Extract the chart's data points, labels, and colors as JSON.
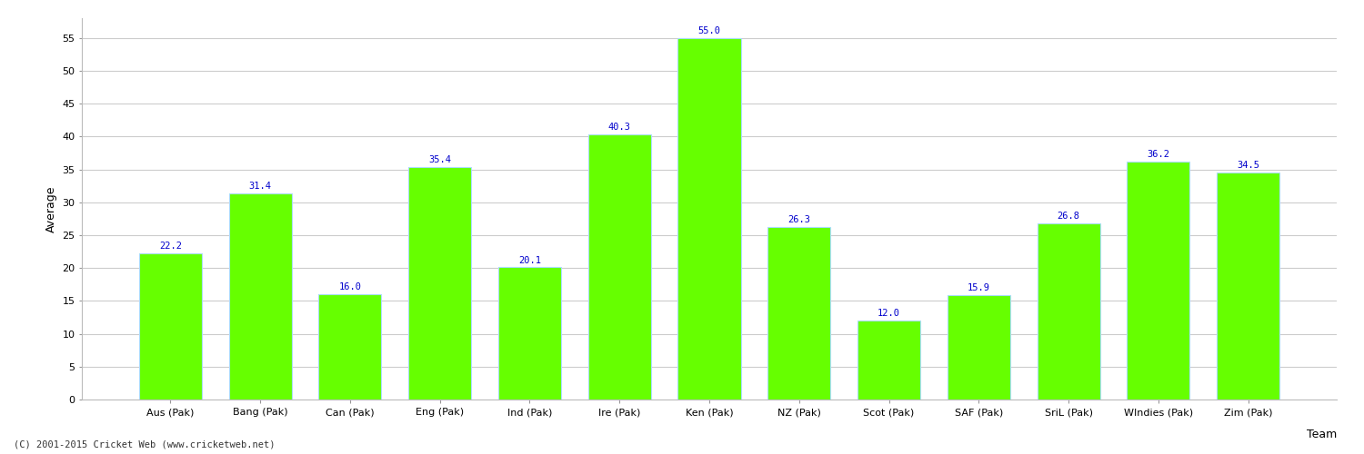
{
  "categories": [
    "Aus (Pak)",
    "Bang (Pak)",
    "Can (Pak)",
    "Eng (Pak)",
    "Ind (Pak)",
    "Ire (Pak)",
    "Ken (Pak)",
    "NZ (Pak)",
    "Scot (Pak)",
    "SAF (Pak)",
    "SriL (Pak)",
    "WIndies (Pak)",
    "Zim (Pak)"
  ],
  "values": [
    22.2,
    31.4,
    16.0,
    35.4,
    20.1,
    40.3,
    55.0,
    26.3,
    12.0,
    15.9,
    26.8,
    36.2,
    34.5
  ],
  "bar_color": "#66ff00",
  "bar_edge_color": "#aaddff",
  "value_label_color": "#0000cc",
  "xlabel": "Team",
  "ylabel": "Average",
  "ylim": [
    0,
    58
  ],
  "yticks": [
    0,
    5,
    10,
    15,
    20,
    25,
    30,
    35,
    40,
    45,
    50,
    55
  ],
  "grid_color": "#cccccc",
  "background_color": "#ffffff",
  "plot_background_color": "#ffffff",
  "footer_text": "(C) 2001-2015 Cricket Web (www.cricketweb.net)",
  "value_fontsize": 7.5,
  "axis_label_fontsize": 9,
  "tick_fontsize": 8,
  "footer_fontsize": 7.5
}
